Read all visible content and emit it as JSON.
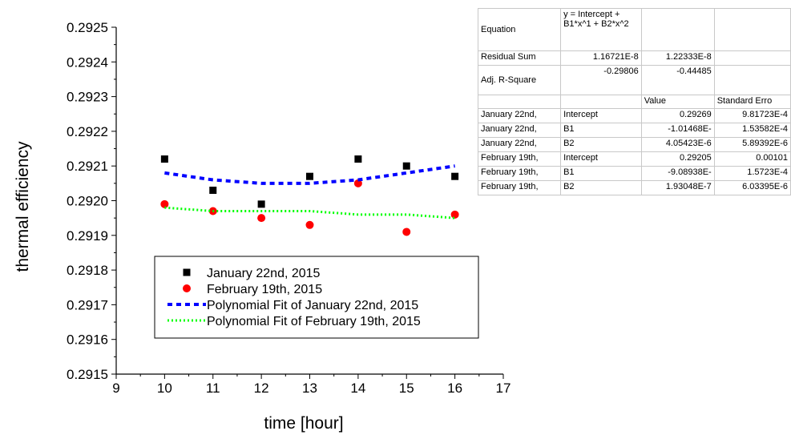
{
  "chart_data": {
    "type": "scatter",
    "xlabel": "time [hour]",
    "ylabel": "thermal efficiency",
    "xlim": [
      9,
      17
    ],
    "ylim": [
      0.2915,
      0.2925
    ],
    "xticks": [
      "9",
      "10",
      "11",
      "12",
      "13",
      "14",
      "15",
      "16",
      "17"
    ],
    "yticks": [
      "0.2915",
      "0.2916",
      "0.2917",
      "0.2918",
      "0.2919",
      "0.2920",
      "0.2921",
      "0.2922",
      "0.2923",
      "0.2924",
      "0.2925"
    ],
    "grid": false,
    "legend_position": "bottom-left",
    "series": [
      {
        "name": "January 22nd, 2015",
        "kind": "scatter",
        "marker": "square",
        "color": "#000000",
        "x": [
          10,
          11,
          12,
          13,
          14,
          15,
          16
        ],
        "y": [
          0.29212,
          0.29203,
          0.29199,
          0.29207,
          0.29212,
          0.2921,
          0.29207
        ]
      },
      {
        "name": "February 19th, 2015",
        "kind": "scatter",
        "marker": "circle",
        "color": "#ff0000",
        "x": [
          10,
          11,
          12,
          13,
          14,
          15,
          16
        ],
        "y": [
          0.29199,
          0.29197,
          0.29195,
          0.29193,
          0.29205,
          0.29191,
          0.29196
        ]
      },
      {
        "name": "Polynomial Fit of  January 22nd, 2015",
        "kind": "line",
        "style": "dashed",
        "color": "#0000ff",
        "x": [
          10,
          11,
          12,
          13,
          14,
          15,
          16
        ],
        "y": [
          0.29208,
          0.29206,
          0.29205,
          0.29205,
          0.29206,
          0.29208,
          0.2921
        ]
      },
      {
        "name": "Polynomial Fit of  February 19th, 2015",
        "kind": "line",
        "style": "dotted",
        "color": "#00ff00",
        "x": [
          10,
          11,
          12,
          13,
          14,
          15,
          16
        ],
        "y": [
          0.29198,
          0.29197,
          0.29197,
          0.29197,
          0.29196,
          0.29196,
          0.29195
        ]
      }
    ]
  },
  "fit_table": {
    "equation_label": "Equation",
    "equation_value": "y = Intercept + B1*x^1 + B2*x^2",
    "rss_label": "Residual Sum",
    "rss_values": [
      "1.16721E-8",
      "1.22333E-8"
    ],
    "adj_label": "Adj. R-Square",
    "adj_values": [
      "-0.29806",
      "-0.44485"
    ],
    "col_value": "Value",
    "col_error": "Standard Erro",
    "rows": [
      {
        "dataset": "January 22nd,",
        "param": "Intercept",
        "value": "0.29269",
        "error": "9.81723E-4"
      },
      {
        "dataset": "January 22nd,",
        "param": "B1",
        "value": "-1.01468E-",
        "error": "1.53582E-4"
      },
      {
        "dataset": "January 22nd,",
        "param": "B2",
        "value": "4.05423E-6",
        "error": "5.89392E-6"
      },
      {
        "dataset": "February 19th,",
        "param": "Intercept",
        "value": "0.29205",
        "error": "0.00101"
      },
      {
        "dataset": "February 19th,",
        "param": "B1",
        "value": "-9.08938E-",
        "error": "1.5723E-4"
      },
      {
        "dataset": "February 19th,",
        "param": "B2",
        "value": "1.93048E-7",
        "error": "6.03395E-6"
      }
    ]
  }
}
